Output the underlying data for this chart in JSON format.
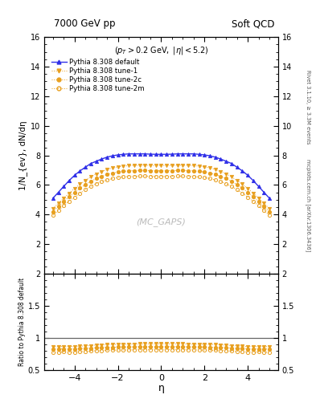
{
  "title_left": "7000 GeV pp",
  "title_right": "Soft QCD",
  "annotation": "(p_{T} > 0.2 GeV, |#eta| < 5.2)",
  "watermark": "(MC_GAPS)",
  "ylabel_main": "1/N_{ev}, dN/dη",
  "ylabel_ratio": "Ratio to Pythia 8.308 default",
  "xlabel": "η",
  "right_label_top": "Rivet 3.1.10, ≥ 3.3M events",
  "right_label_bottom": "mcplots.cern.ch [arXiv:1306.3436]",
  "xlim": [
    -5.4,
    5.4
  ],
  "ylim_main": [
    0,
    16
  ],
  "ylim_ratio": [
    0.5,
    2.0
  ],
  "yticks_main": [
    2,
    4,
    6,
    8,
    10,
    12,
    14,
    16
  ],
  "yticks_ratio": [
    0.5,
    1.0,
    1.5,
    2.0
  ],
  "series": [
    {
      "label": "Pythia 8.308 default",
      "color": "#3030e8",
      "marker": "^",
      "filled": true
    },
    {
      "label": "Pythia 8.308 tune-1",
      "color": "#e8a020",
      "marker": "v",
      "filled": true
    },
    {
      "label": "Pythia 8.308 tune-2c",
      "color": "#e8a020",
      "marker": "o",
      "filled": true
    },
    {
      "label": "Pythia 8.308 tune-2m",
      "color": "#e8a020",
      "marker": "o",
      "filled": false
    }
  ],
  "eta_points": [
    -5.0,
    -4.75,
    -4.5,
    -4.25,
    -4.0,
    -3.75,
    -3.5,
    -3.25,
    -3.0,
    -2.75,
    -2.5,
    -2.25,
    -2.0,
    -1.75,
    -1.5,
    -1.25,
    -1.0,
    -0.75,
    -0.5,
    -0.25,
    0.0,
    0.25,
    0.5,
    0.75,
    1.0,
    1.25,
    1.5,
    1.75,
    2.0,
    2.25,
    2.5,
    2.75,
    3.0,
    3.25,
    3.5,
    3.75,
    4.0,
    4.25,
    4.5,
    4.75,
    5.0
  ],
  "values_default": [
    5.1,
    5.5,
    5.9,
    6.3,
    6.65,
    6.95,
    7.2,
    7.45,
    7.6,
    7.75,
    7.88,
    7.97,
    8.03,
    8.07,
    8.1,
    8.1,
    8.1,
    8.1,
    8.08,
    8.07,
    8.07,
    8.07,
    8.08,
    8.1,
    8.1,
    8.1,
    8.1,
    8.07,
    8.03,
    7.97,
    7.88,
    7.75,
    7.6,
    7.45,
    7.2,
    6.95,
    6.65,
    6.3,
    5.9,
    5.5,
    5.1
  ],
  "values_tune1": [
    4.4,
    4.75,
    5.1,
    5.45,
    5.75,
    6.05,
    6.3,
    6.55,
    6.75,
    6.9,
    7.05,
    7.15,
    7.22,
    7.27,
    7.3,
    7.32,
    7.33,
    7.33,
    7.32,
    7.31,
    7.31,
    7.31,
    7.32,
    7.33,
    7.33,
    7.32,
    7.3,
    7.27,
    7.22,
    7.15,
    7.05,
    6.9,
    6.75,
    6.55,
    6.3,
    6.05,
    5.75,
    5.45,
    5.1,
    4.75,
    4.4
  ],
  "values_tune2c": [
    4.2,
    4.55,
    4.88,
    5.2,
    5.5,
    5.78,
    6.02,
    6.25,
    6.43,
    6.58,
    6.71,
    6.8,
    6.87,
    6.92,
    6.95,
    6.97,
    6.98,
    6.98,
    6.97,
    6.96,
    6.96,
    6.96,
    6.97,
    6.98,
    6.98,
    6.97,
    6.95,
    6.92,
    6.87,
    6.8,
    6.71,
    6.58,
    6.43,
    6.25,
    6.02,
    5.78,
    5.5,
    5.2,
    4.88,
    4.55,
    4.2
  ],
  "values_tune2m": [
    3.95,
    4.27,
    4.6,
    4.9,
    5.18,
    5.45,
    5.68,
    5.9,
    6.08,
    6.22,
    6.34,
    6.43,
    6.5,
    6.54,
    6.57,
    6.59,
    6.6,
    6.6,
    6.59,
    6.58,
    6.58,
    6.58,
    6.59,
    6.6,
    6.6,
    6.59,
    6.57,
    6.54,
    6.5,
    6.43,
    6.34,
    6.22,
    6.08,
    5.9,
    5.68,
    5.45,
    5.18,
    4.9,
    4.6,
    4.27,
    3.95
  ]
}
